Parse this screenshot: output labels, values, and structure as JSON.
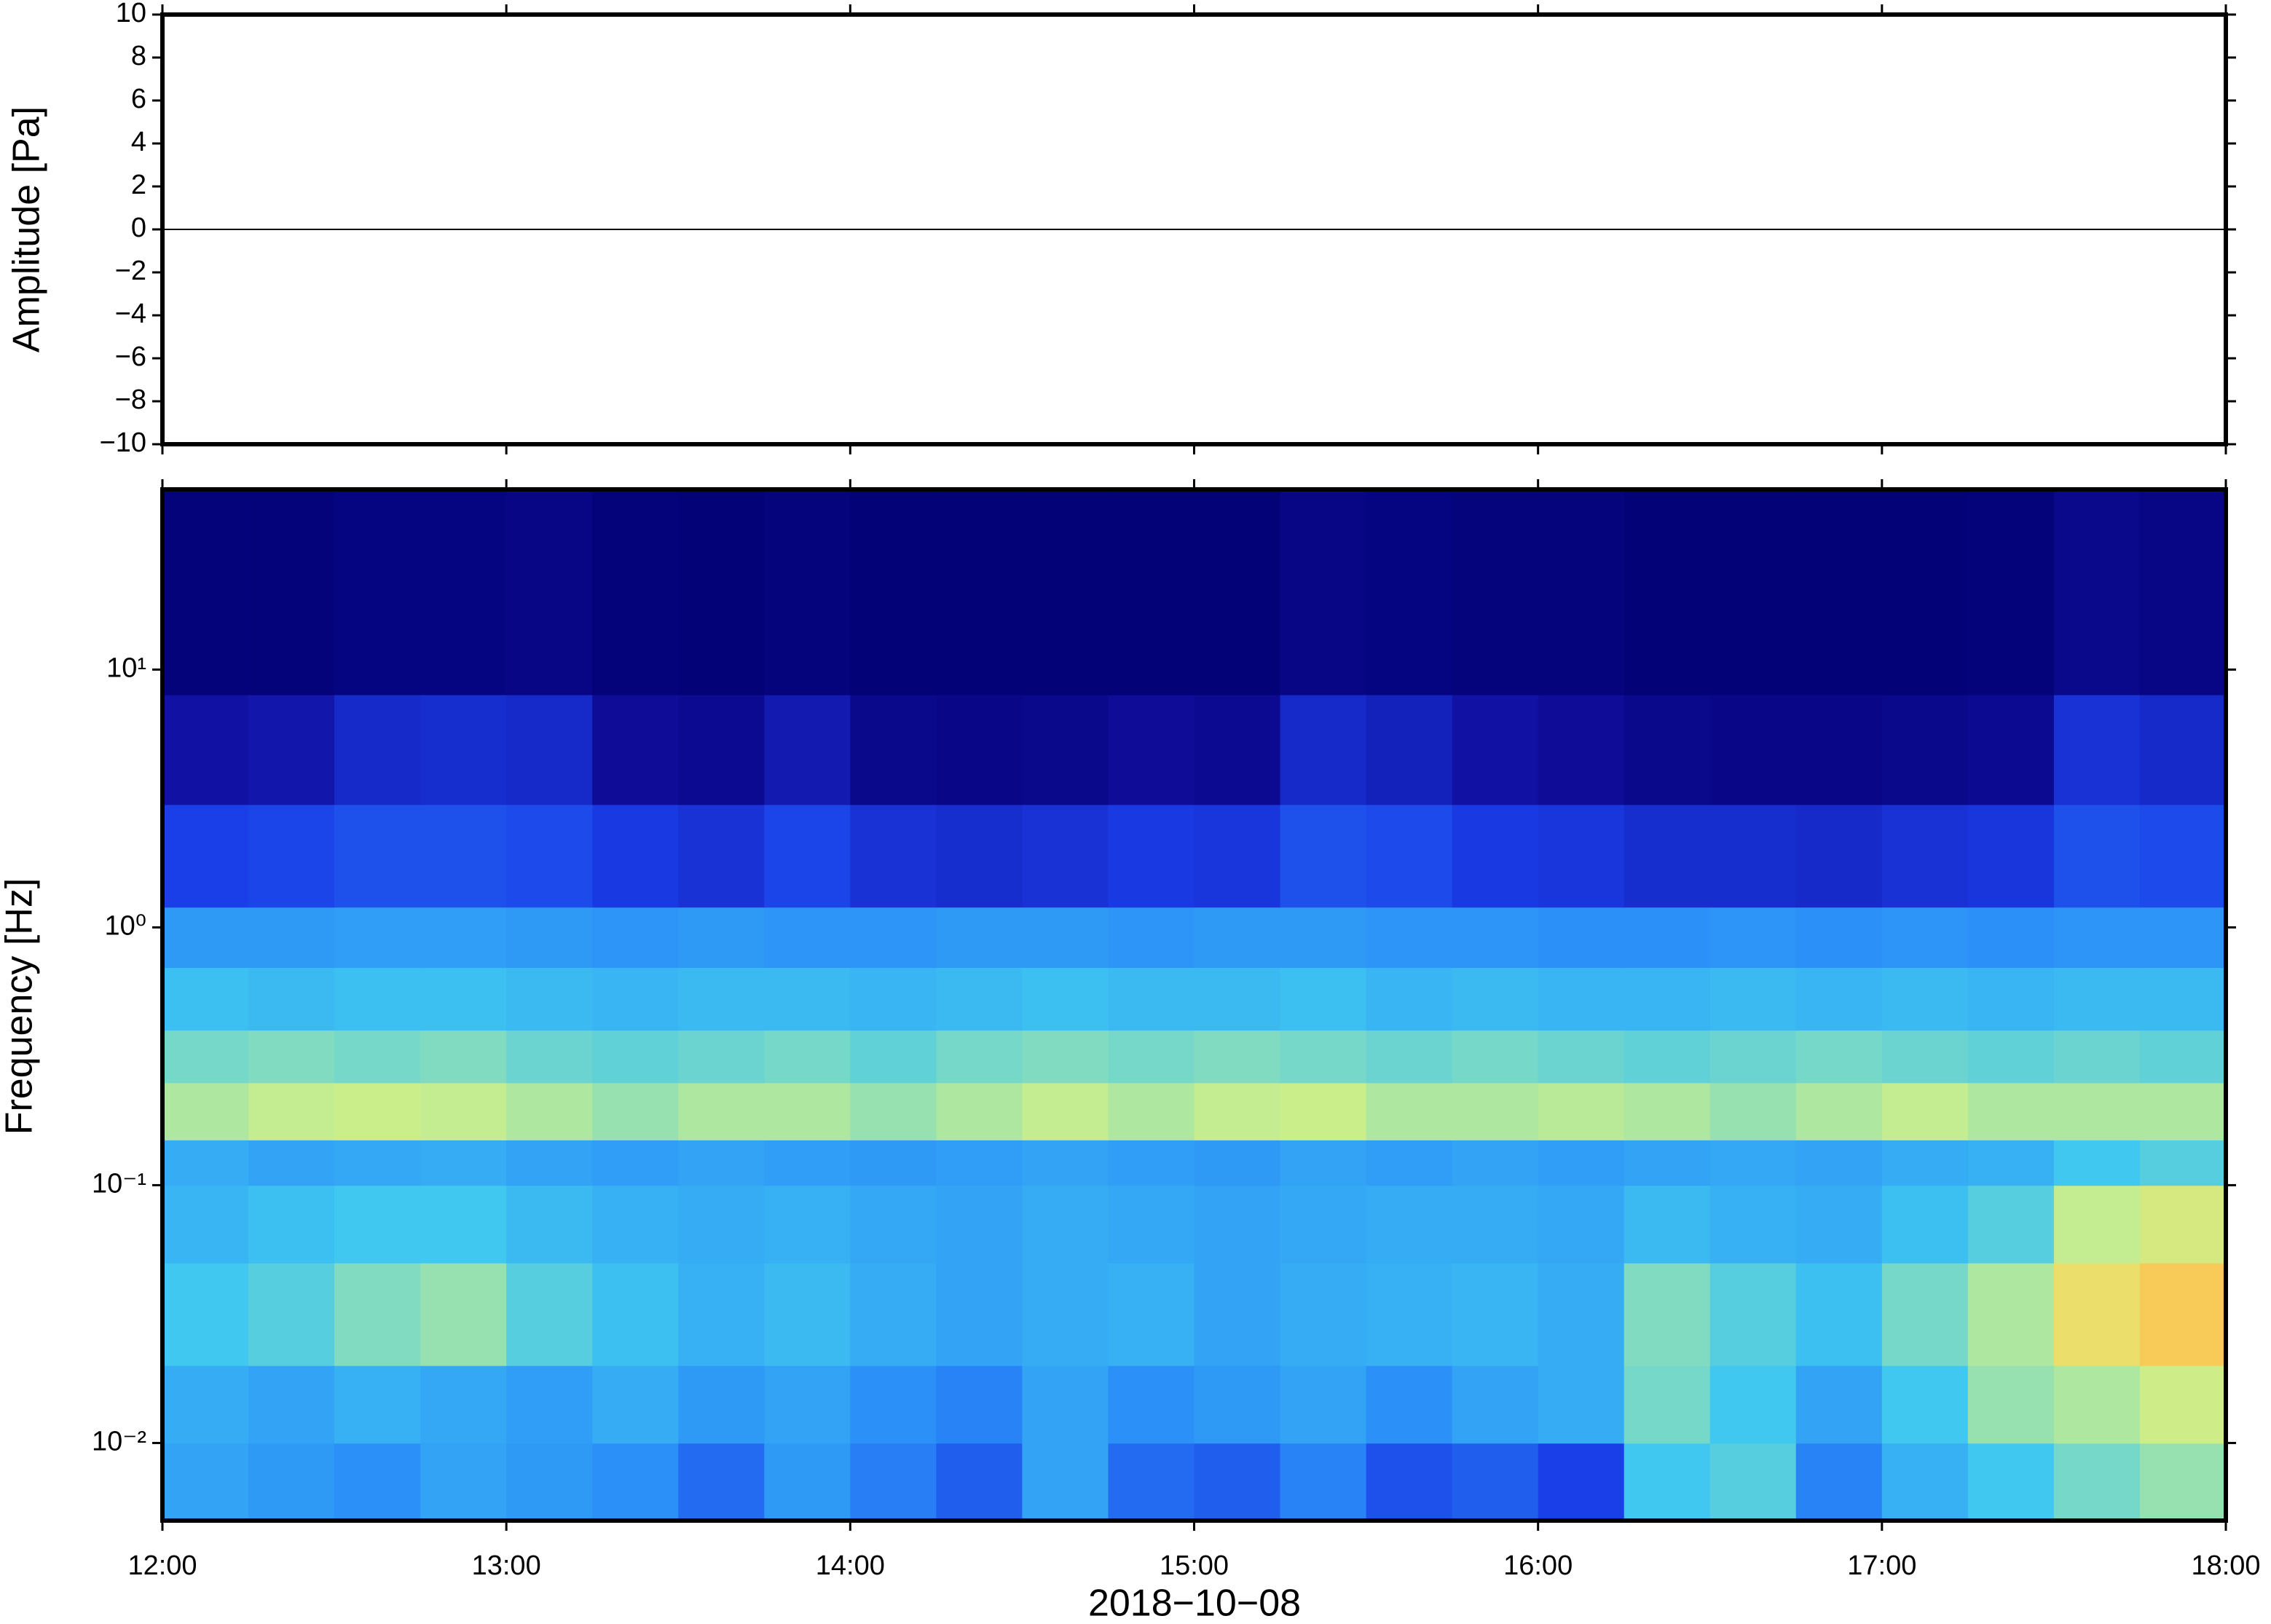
{
  "chart_data": [
    {
      "type": "line",
      "ylabel": "Amplitude [Pa]",
      "xlim": [
        12,
        18
      ],
      "ylim": [
        -10,
        10
      ],
      "yticks": [
        {
          "value": -10,
          "label": "−10"
        },
        {
          "value": -8,
          "label": "−8"
        },
        {
          "value": -6,
          "label": "−6"
        },
        {
          "value": -4,
          "label": "−4"
        },
        {
          "value": -2,
          "label": "−2"
        },
        0,
        2,
        4,
        6,
        8,
        10
      ],
      "series": [
        {
          "color": "#000000",
          "x": [
            12,
            12.5,
            13,
            13.5,
            14,
            14.5,
            15,
            15.5,
            16,
            16.5,
            17,
            17.5,
            18
          ],
          "values": [
            0,
            0,
            0,
            0,
            0,
            0,
            0,
            0,
            0,
            0,
            0,
            0,
            0
          ]
        }
      ]
    },
    {
      "type": "heatmap",
      "ylabel": "Frequency [Hz]",
      "xlabel": "2018−10−08",
      "xlim": [
        12,
        18
      ],
      "xticks": [
        {
          "value": 12,
          "label": "12:00"
        },
        {
          "value": 13,
          "label": "13:00"
        },
        {
          "value": 14,
          "label": "14:00"
        },
        {
          "value": 15,
          "label": "15:00"
        },
        {
          "value": 16,
          "label": "16:00"
        },
        {
          "value": 17,
          "label": "17:00"
        },
        {
          "value": 18,
          "label": "18:00"
        }
      ],
      "ylim": [
        0.005,
        50
      ],
      "log_y": true,
      "yticks": [
        {
          "value": 0.01,
          "label": "10⁻²"
        },
        {
          "value": 0.1,
          "label": "10⁻¹"
        },
        {
          "value": 1,
          "label": "10⁰"
        },
        {
          "value": 10,
          "label": "10¹"
        }
      ],
      "colormap": [
        "#000070",
        "#100c9a",
        "#1a3ee8",
        "#2a8ef8",
        "#40c8f0",
        "#c8ef8c",
        "#f8d860",
        "#f8a040",
        "#e05030"
      ],
      "x_edges": [
        12,
        12.25,
        12.5,
        12.75,
        13,
        13.25,
        13.5,
        13.75,
        14,
        14.25,
        14.5,
        14.75,
        15,
        15.25,
        15.5,
        15.75,
        16,
        16.25,
        16.5,
        16.75,
        17,
        17.25,
        17.5,
        17.75,
        18
      ],
      "y_edges": [
        0.005,
        0.01,
        0.02,
        0.05,
        0.1,
        0.15,
        0.25,
        0.4,
        0.7,
        1.2,
        3,
        8,
        50
      ],
      "values": [
        [
          0.42,
          0.4,
          0.38,
          0.42,
          0.4,
          0.38,
          0.32,
          0.4,
          0.35,
          0.3,
          0.42,
          0.32,
          0.3,
          0.36,
          0.28,
          0.3,
          0.25,
          0.5,
          0.52,
          0.36,
          0.45,
          0.5,
          0.55,
          0.58
        ],
        [
          0.44,
          0.42,
          0.45,
          0.43,
          0.41,
          0.44,
          0.4,
          0.42,
          0.38,
          0.36,
          0.42,
          0.38,
          0.4,
          0.42,
          0.38,
          0.42,
          0.44,
          0.55,
          0.5,
          0.42,
          0.5,
          0.58,
          0.6,
          0.64
        ],
        [
          0.5,
          0.52,
          0.56,
          0.58,
          0.52,
          0.48,
          0.45,
          0.47,
          0.44,
          0.42,
          0.44,
          0.45,
          0.42,
          0.44,
          0.45,
          0.46,
          0.44,
          0.56,
          0.52,
          0.48,
          0.55,
          0.6,
          0.72,
          0.78
        ],
        [
          0.46,
          0.48,
          0.5,
          0.5,
          0.47,
          0.45,
          0.44,
          0.45,
          0.43,
          0.42,
          0.44,
          0.43,
          0.42,
          0.43,
          0.44,
          0.44,
          0.43,
          0.47,
          0.45,
          0.44,
          0.48,
          0.52,
          0.62,
          0.66
        ],
        [
          0.44,
          0.42,
          0.43,
          0.44,
          0.42,
          0.41,
          0.42,
          0.41,
          0.4,
          0.41,
          0.42,
          0.41,
          0.4,
          0.42,
          0.41,
          0.42,
          0.41,
          0.42,
          0.43,
          0.42,
          0.44,
          0.45,
          0.5,
          0.52
        ],
        [
          0.6,
          0.62,
          0.63,
          0.62,
          0.6,
          0.58,
          0.6,
          0.6,
          0.58,
          0.6,
          0.62,
          0.6,
          0.62,
          0.63,
          0.6,
          0.6,
          0.61,
          0.6,
          0.58,
          0.6,
          0.62,
          0.6,
          0.6,
          0.6
        ],
        [
          0.55,
          0.56,
          0.55,
          0.56,
          0.54,
          0.53,
          0.54,
          0.55,
          0.53,
          0.55,
          0.56,
          0.55,
          0.56,
          0.55,
          0.54,
          0.55,
          0.54,
          0.53,
          0.54,
          0.55,
          0.54,
          0.53,
          0.54,
          0.53
        ],
        [
          0.48,
          0.47,
          0.48,
          0.48,
          0.47,
          0.46,
          0.47,
          0.47,
          0.46,
          0.47,
          0.48,
          0.47,
          0.47,
          0.48,
          0.46,
          0.47,
          0.46,
          0.46,
          0.47,
          0.46,
          0.47,
          0.46,
          0.47,
          0.47
        ],
        [
          0.4,
          0.4,
          0.41,
          0.41,
          0.4,
          0.39,
          0.4,
          0.39,
          0.39,
          0.4,
          0.4,
          0.39,
          0.4,
          0.4,
          0.39,
          0.39,
          0.38,
          0.38,
          0.39,
          0.38,
          0.39,
          0.38,
          0.39,
          0.39
        ],
        [
          0.25,
          0.26,
          0.28,
          0.28,
          0.27,
          0.24,
          0.22,
          0.26,
          0.22,
          0.21,
          0.22,
          0.24,
          0.23,
          0.28,
          0.27,
          0.24,
          0.23,
          0.21,
          0.21,
          0.2,
          0.22,
          0.23,
          0.28,
          0.27
        ],
        [
          0.14,
          0.15,
          0.2,
          0.21,
          0.2,
          0.12,
          0.1,
          0.16,
          0.08,
          0.07,
          0.08,
          0.12,
          0.1,
          0.2,
          0.18,
          0.14,
          0.12,
          0.08,
          0.07,
          0.07,
          0.08,
          0.1,
          0.22,
          0.2
        ],
        [
          0.03,
          0.03,
          0.05,
          0.05,
          0.06,
          0.03,
          0.02,
          0.04,
          0.02,
          0.02,
          0.02,
          0.02,
          0.02,
          0.06,
          0.05,
          0.04,
          0.04,
          0.02,
          0.02,
          0.02,
          0.02,
          0.03,
          0.08,
          0.06
        ]
      ]
    }
  ]
}
